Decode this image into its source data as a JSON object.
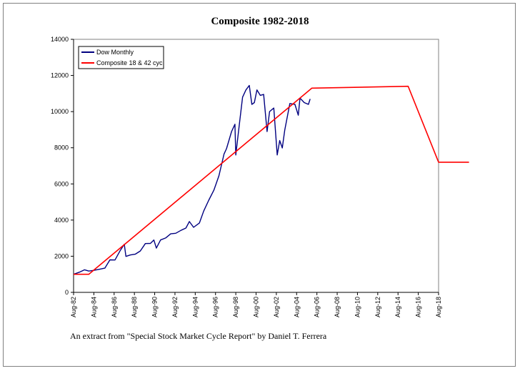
{
  "chart_data": {
    "type": "line",
    "title": "Composite 1982-2018",
    "xlabel": "",
    "ylabel": "",
    "ylim": [
      0,
      14000
    ],
    "yticks": [
      0,
      2000,
      4000,
      6000,
      8000,
      10000,
      12000,
      14000
    ],
    "ytick_labels": [
      "0",
      "2000",
      "4000",
      "6000",
      "8000",
      "10000",
      "12000",
      "14000"
    ],
    "xlim": [
      "Aug-82",
      "Aug-18"
    ],
    "xticks": [
      "Aug-82",
      "Aug-84",
      "Aug-86",
      "Aug-88",
      "Aug-90",
      "Aug-92",
      "Aug-94",
      "Aug-96",
      "Aug-98",
      "Aug-00",
      "Aug-02",
      "Aug-04",
      "Aug-06",
      "Aug-08",
      "Aug-10",
      "Aug-12",
      "Aug-14",
      "Aug-16",
      "Aug-18"
    ],
    "xtick_labels": [
      "Aug-82",
      "Aug-84",
      "Aug-86",
      "Aug-88",
      "Aug-90",
      "Aug-92",
      "Aug-94",
      "Aug-96",
      "Aug-98",
      "Aug-00",
      "Aug-02",
      "Aug-04",
      "Aug-06",
      "Aug-08",
      "Aug-10",
      "Aug-12",
      "Aug-14",
      "Aug-16",
      "Aug-18"
    ],
    "grid": false,
    "legend_position": "top-left",
    "series": [
      {
        "name": "Dow Monthly",
        "color": "#000080",
        "x": [
          "1982-08",
          "1983-03",
          "1983-09",
          "1984-02",
          "1984-08",
          "1985-03",
          "1985-09",
          "1986-03",
          "1986-09",
          "1987-03",
          "1987-08",
          "1987-10",
          "1988-03",
          "1988-09",
          "1989-03",
          "1989-09",
          "1990-03",
          "1990-07",
          "1990-10",
          "1991-03",
          "1991-09",
          "1992-03",
          "1992-09",
          "1993-03",
          "1993-09",
          "1994-01",
          "1994-06",
          "1995-01",
          "1995-06",
          "1995-12",
          "1996-06",
          "1996-12",
          "1997-06",
          "1997-09",
          "1998-03",
          "1998-07",
          "1998-08",
          "1998-12",
          "1999-04",
          "1999-08",
          "1999-12",
          "2000-03",
          "2000-06",
          "2000-09",
          "2001-01",
          "2001-05",
          "2001-09",
          "2001-12",
          "2002-05",
          "2002-09",
          "2002-12",
          "2003-03",
          "2003-06",
          "2003-12",
          "2004-06",
          "2004-10",
          "2004-12",
          "2005-05",
          "2005-10",
          "2005-12"
        ],
        "values": [
          1000,
          1120,
          1250,
          1180,
          1220,
          1280,
          1340,
          1800,
          1790,
          2300,
          2660,
          1990,
          2070,
          2110,
          2290,
          2700,
          2710,
          2900,
          2450,
          2900,
          3010,
          3240,
          3270,
          3430,
          3560,
          3920,
          3600,
          3840,
          4500,
          5100,
          5650,
          6450,
          7650,
          7950,
          8900,
          9300,
          7600,
          9200,
          10800,
          11200,
          11450,
          10400,
          10500,
          11200,
          10900,
          10950,
          8900,
          10000,
          10200,
          7600,
          8400,
          7990,
          8990,
          10450,
          10400,
          9800,
          10750,
          10500,
          10400,
          10700
        ]
      },
      {
        "name": "Composite 18 & 42 cyc",
        "color": "#ff0000",
        "x": [
          "1982-08",
          "1984-02",
          "2006-02",
          "2015-08",
          "2018-08",
          "2021-08"
        ],
        "values": [
          1000,
          1000,
          11300,
          11400,
          7200,
          7200
        ]
      }
    ]
  },
  "caption": "An extract from \"Special Stock Market Cycle Report\" by Daniel T. Ferrera"
}
